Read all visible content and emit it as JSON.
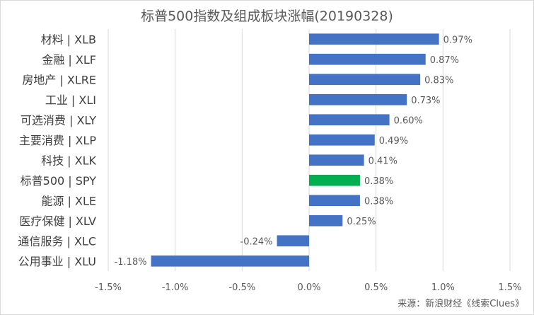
{
  "chart_data": {
    "type": "bar",
    "orientation": "horizontal",
    "title": "标普500指数及组成板块涨幅(20190328)",
    "categories": [
      "材料 | XLB",
      "金融 | XLF",
      "房地产 | XLRE",
      "工业 | XLI",
      "可选消费 | XLY",
      "主要消费 | XLP",
      "科技 | XLK",
      "标普500 | SPY",
      "能源 | XLE",
      "医疗保健 | XLV",
      "通信服务 | XLC",
      "公用事业 | XLU"
    ],
    "values": [
      0.97,
      0.87,
      0.83,
      0.73,
      0.6,
      0.49,
      0.41,
      0.38,
      0.38,
      0.25,
      -0.24,
      -1.18
    ],
    "data_labels": [
      "0.97%",
      "0.87%",
      "0.83%",
      "0.73%",
      "0.60%",
      "0.49%",
      "0.41%",
      "0.38%",
      "0.38%",
      "0.25%",
      "-0.24%",
      "-1.18%"
    ],
    "xlim": [
      -1.5,
      1.5
    ],
    "xticks": [
      -1.5,
      -1.0,
      -0.5,
      0.0,
      0.5,
      1.0,
      1.5
    ],
    "xtick_labels": [
      "-1.5%",
      "-1.0%",
      "-0.5%",
      "0.0%",
      "0.5%",
      "1.0%",
      "1.5%"
    ],
    "xlabel": "",
    "ylabel": "",
    "grid": "vertical",
    "legend": "none",
    "colors": {
      "default": "#4472c4",
      "highlight": "#00b050",
      "grid": "#d9d9d9",
      "text": "#595959",
      "category_text": "#404040"
    },
    "highlight_category": "标普500 | SPY"
  },
  "source": "来源：新浪财经《线索Clues》"
}
